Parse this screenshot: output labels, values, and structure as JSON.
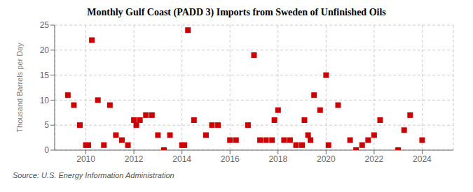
{
  "chart_data": {
    "type": "scatter",
    "title": "Monthly Gulf Coast (PADD 3) Imports from Sweden of Unfinished Oils",
    "ylabel": "Thousand Barrels per Day",
    "annotation": "Source: U.S. Energy Information Administration",
    "color": "#cc0000",
    "marker": "square",
    "xlim": [
      2008.7,
      2025.3
    ],
    "ylim": [
      0,
      25
    ],
    "xticks": [
      2010,
      2012,
      2014,
      2016,
      2018,
      2020,
      2022,
      2024
    ],
    "yticks": [
      0,
      5,
      10,
      15,
      20,
      25
    ],
    "grid": true,
    "x": [
      2009.25,
      2009.5,
      2009.75,
      2010.0,
      2010.1,
      2010.25,
      2010.5,
      2010.75,
      2011.0,
      2011.25,
      2011.5,
      2011.75,
      2012.0,
      2012.1,
      2012.25,
      2012.5,
      2012.75,
      2013.0,
      2013.25,
      2013.5,
      2014.0,
      2014.1,
      2014.25,
      2014.5,
      2015.0,
      2015.25,
      2015.5,
      2016.0,
      2016.25,
      2016.75,
      2017.0,
      2017.25,
      2017.5,
      2017.75,
      2017.85,
      2018.0,
      2018.25,
      2018.5,
      2018.75,
      2019.0,
      2019.1,
      2019.25,
      2019.35,
      2019.5,
      2019.75,
      2020.0,
      2020.1,
      2020.5,
      2021.0,
      2021.25,
      2021.5,
      2021.75,
      2022.0,
      2022.25,
      2023.0,
      2023.25,
      2023.5,
      2024.0
    ],
    "values": [
      11,
      9,
      5,
      1,
      1,
      22,
      10,
      1,
      9,
      3,
      2,
      1,
      6,
      5,
      6,
      7,
      7,
      3,
      0,
      3,
      1,
      1,
      24,
      6,
      3,
      5,
      5,
      2,
      2,
      5,
      19,
      2,
      2,
      2,
      6,
      8,
      2,
      2,
      1,
      1,
      6,
      3,
      2,
      11,
      8,
      15,
      1,
      9,
      2,
      0,
      1,
      2,
      3,
      6,
      0,
      4,
      7,
      2
    ]
  }
}
